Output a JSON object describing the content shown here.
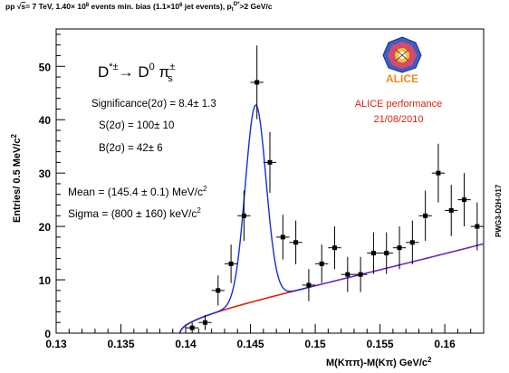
{
  "header": {
    "prefix": "pp ",
    "sqrt": "√",
    "s": "s",
    "energy": "= 7 TeV, 1.40× 10",
    "energy_exp": "8",
    "events": " events min. bias (1.1×10",
    "events_exp": "6",
    "jets": " jet events), p",
    "pt_sub": "t",
    "pt_sup": "D*",
    "tail": ">2 GeV/c"
  },
  "labels": {
    "decay_D": "D",
    "decay_D_sup": "*±",
    "decay_arrow": "→ D",
    "decay_D0_sup": "0",
    "decay_pi": " π",
    "decay_pi_sup": "±",
    "decay_pi_sub": "s",
    "significance": "Significance(2σ) = 8.4± 1.3",
    "signal": "S(2σ) = 100± 10",
    "background": "B(2σ) = 42± 6",
    "mean": "Mean = (145.4 ± 0.1) MeV/c",
    "mean_sup": "2",
    "sigma": "Sigma = (800 ± 160) keV/c",
    "sigma_sup": "2",
    "alice_logo": "ALICE",
    "performance": "ALICE performance",
    "date": "21/08/2010",
    "side_tag": "PWG3-D2H-017"
  },
  "colors": {
    "data": "#000000",
    "fit_total": "#1030e0",
    "fit_background": "#e02010",
    "performance_text": "#e02010"
  },
  "chart_data": {
    "type": "scatter",
    "xlabel": "M(Kππ)-M(Kπ) GeV/c",
    "xlabel_sup": "2",
    "ylabel": "Entries/ 0.5 MeV/c",
    "ylabel_sup": "2",
    "xlim": [
      0.13,
      0.163
    ],
    "ylim": [
      0,
      57
    ],
    "xticks": [
      "0.13",
      "0.135",
      "0.14",
      "0.145",
      "0.15",
      "0.155",
      "0.16"
    ],
    "yticks": [
      "0",
      "10",
      "20",
      "30",
      "40",
      "50"
    ],
    "series": [
      {
        "type": "points_with_errors",
        "x": [
          0.1405,
          0.1415,
          0.1425,
          0.1435,
          0.1445,
          0.1455,
          0.1465,
          0.1475,
          0.1485,
          0.1495,
          0.1505,
          0.1515,
          0.1525,
          0.1535,
          0.1545,
          0.1555,
          0.1565,
          0.1575,
          0.1585,
          0.1595,
          0.1605,
          0.1615,
          0.1625
        ],
        "y": [
          1,
          2,
          8,
          13,
          22,
          47,
          32,
          18,
          17,
          9,
          13,
          16,
          11,
          11,
          15,
          15,
          16,
          17,
          22,
          30,
          23,
          25,
          20
        ],
        "y_err": [
          1,
          1.4,
          2.8,
          3.6,
          4.7,
          6.9,
          5.7,
          4.2,
          4.1,
          3,
          3.6,
          4,
          3.3,
          3.3,
          3.9,
          3.9,
          4,
          4.1,
          4.7,
          5.5,
          4.8,
          5,
          4.5
        ],
        "x_err": 0.0005
      },
      {
        "type": "fit_signal_plus_background",
        "mean": 0.1454,
        "sigma": 0.0008,
        "amplitude": 36.7,
        "range": [
          0.1395,
          0.163
        ]
      },
      {
        "type": "fit_background",
        "function": "A*sqrt(x - m_pi)*(1 + B*(x - m_pi))",
        "m_pi": 0.13957,
        "A": 68.97,
        "B": 25,
        "range": [
          0.1395,
          0.163
        ]
      }
    ]
  }
}
